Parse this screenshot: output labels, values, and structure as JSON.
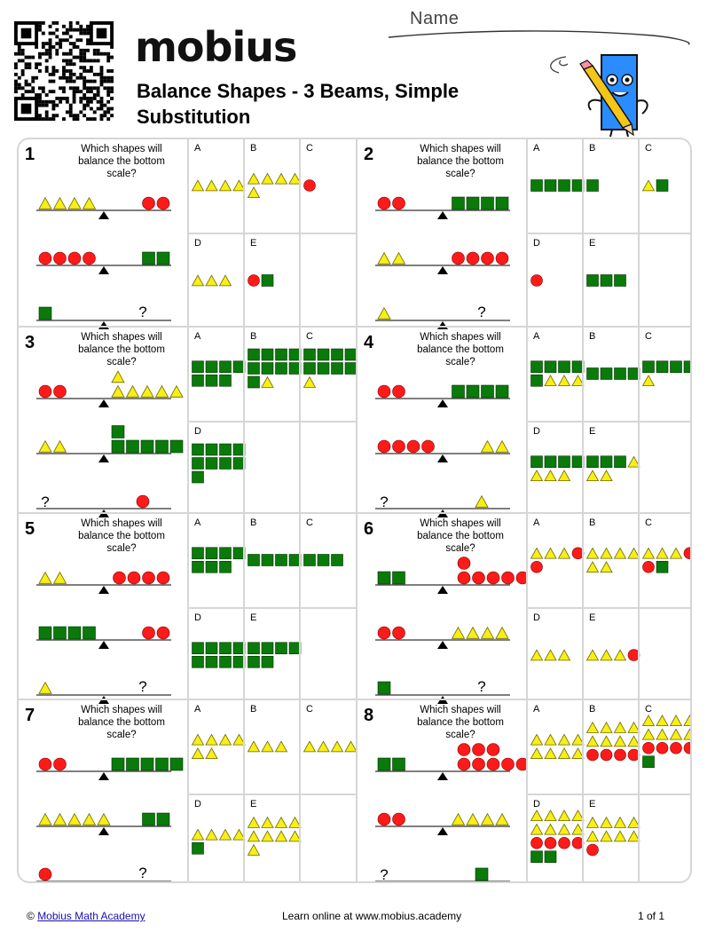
{
  "header": {
    "logo_text": "mobius",
    "title": "Balance Shapes - 3 Beams, Simple Substitution",
    "name_label": "Name"
  },
  "colors": {
    "triangle": "#f7ef15",
    "circle": "#ff1a1a",
    "square": "#0a7a0a",
    "brand": "#111111",
    "logo_accent": "#2aa0ff"
  },
  "icons": [
    "qr-code-icon",
    "mobius-logo-icon",
    "pencil-mascot-icon",
    "fulcrum-icon"
  ],
  "problems": [
    {
      "num": "1",
      "prompt": "Which shapes will balance the bottom scale?",
      "beams": [
        {
          "left": "TTTT",
          "right": "CC"
        },
        {
          "left": "CCCC",
          "right": "SS"
        },
        {
          "left": "S",
          "right": "?"
        }
      ],
      "options": [
        {
          "label": "A",
          "shapes": "TTTT"
        },
        {
          "label": "B",
          "shapes": "TTTTT"
        },
        {
          "label": "C",
          "shapes": "C"
        },
        {
          "label": "D",
          "shapes": "TTT"
        },
        {
          "label": "E",
          "shapes": "CS"
        }
      ]
    },
    {
      "num": "2",
      "prompt": "Which shapes will balance the bottom scale?",
      "beams": [
        {
          "left": "CC",
          "right": "SSSS"
        },
        {
          "left": "TT",
          "right": "CCCC"
        },
        {
          "left": "T",
          "right": "?"
        }
      ],
      "options": [
        {
          "label": "A",
          "shapes": "SSSS"
        },
        {
          "label": "B",
          "shapes": "S"
        },
        {
          "label": "C",
          "shapes": "TS"
        },
        {
          "label": "D",
          "shapes": "C"
        },
        {
          "label": "E",
          "shapes": "SSS"
        }
      ]
    },
    {
      "num": "3",
      "prompt": "Which shapes will balance the bottom scale?",
      "beams": [
        {
          "left": "CC",
          "right": "TTTTTT"
        },
        {
          "left": "TT",
          "right": "SSSSSS"
        },
        {
          "left": "?",
          "right": "C"
        }
      ],
      "options": [
        {
          "label": "A",
          "shapes": "SSSSSSS"
        },
        {
          "label": "B",
          "shapes": "SSSSSSSSST"
        },
        {
          "label": "C",
          "shapes": "SSSSSSSST"
        },
        {
          "label": "D",
          "shapes": "SSSSSSSSS"
        }
      ]
    },
    {
      "num": "4",
      "prompt": "Which shapes will balance the bottom scale?",
      "beams": [
        {
          "left": "CC",
          "right": "SSSS"
        },
        {
          "left": "CCCC",
          "right": "TT"
        },
        {
          "left": "?",
          "right": "T"
        }
      ],
      "options": [
        {
          "label": "A",
          "shapes": "SSSSSTTT"
        },
        {
          "label": "B",
          "shapes": "SSSS"
        },
        {
          "label": "C",
          "shapes": "SSSST"
        },
        {
          "label": "D",
          "shapes": "SSSSTTT"
        },
        {
          "label": "E",
          "shapes": "SSSTTT"
        }
      ]
    },
    {
      "num": "5",
      "prompt": "Which shapes will balance the bottom scale?",
      "beams": [
        {
          "left": "TT",
          "right": "CCCC"
        },
        {
          "left": "SSSS",
          "right": "CC"
        },
        {
          "left": "T",
          "right": "?"
        }
      ],
      "options": [
        {
          "label": "A",
          "shapes": "SSSSSSS"
        },
        {
          "label": "B",
          "shapes": "SSSS"
        },
        {
          "label": "C",
          "shapes": "SSS"
        },
        {
          "label": "D",
          "shapes": "SSSSSSSS"
        },
        {
          "label": "E",
          "shapes": "SSSSSS"
        }
      ]
    },
    {
      "num": "6",
      "prompt": "Which shapes will balance the bottom scale?",
      "beams": [
        {
          "left": "SS",
          "right": "CCCCCC"
        },
        {
          "left": "CC",
          "right": "TTTT"
        },
        {
          "left": "S",
          "right": "?"
        }
      ],
      "options": [
        {
          "label": "A",
          "shapes": "TTTCC"
        },
        {
          "label": "B",
          "shapes": "TTTTTT"
        },
        {
          "label": "C",
          "shapes": "TTTCCS"
        },
        {
          "label": "D",
          "shapes": "TTT"
        },
        {
          "label": "E",
          "shapes": "TTTC"
        }
      ]
    },
    {
      "num": "7",
      "prompt": "Which shapes will balance the bottom scale?",
      "beams": [
        {
          "left": "CC",
          "right": "SSSSS"
        },
        {
          "left": "TTTTT",
          "right": "SS"
        },
        {
          "left": "C",
          "right": "?"
        }
      ],
      "options": [
        {
          "label": "A",
          "shapes": "TTTTTT"
        },
        {
          "label": "B",
          "shapes": "TTT"
        },
        {
          "label": "C",
          "shapes": "TTTT"
        },
        {
          "label": "D",
          "shapes": "TTTTS"
        },
        {
          "label": "E",
          "shapes": "TTTTTTTTT"
        }
      ]
    },
    {
      "num": "8",
      "prompt": "Which shapes will balance the bottom scale?",
      "beams": [
        {
          "left": "SS",
          "right": "CCCCCCCC"
        },
        {
          "left": "CC",
          "right": "TTTT"
        },
        {
          "left": "?",
          "right": "S"
        }
      ],
      "options": [
        {
          "label": "A",
          "shapes": "TTTTTTTT"
        },
        {
          "label": "B",
          "shapes": "TTTTTTTTCCCC"
        },
        {
          "label": "C",
          "shapes": "TTTTTTTTCCCCS"
        },
        {
          "label": "D",
          "shapes": "TTTTTTTTCCCCSS"
        },
        {
          "label": "E",
          "shapes": "TTTTTTTTC"
        }
      ]
    }
  ],
  "footer": {
    "copyright_symbol": "©",
    "academy_link": "Mobius Math Academy",
    "learn_online": "Learn online at www.mobius.academy",
    "page": "1 of 1"
  }
}
